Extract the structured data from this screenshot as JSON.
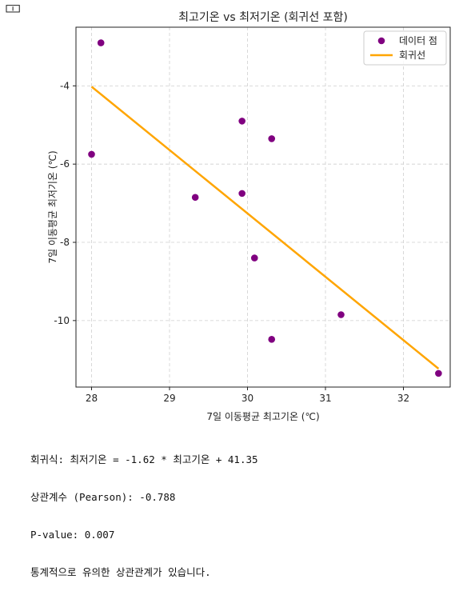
{
  "corner_icon": "🀱",
  "chart_data": {
    "type": "scatter",
    "title": "최고기온 vs 최저기온 (회귀선 포함)",
    "xlabel": "7일 이동평균 최고기온 (℃)",
    "ylabel": "7일 이동평균 최저기온 (℃)",
    "xlim": [
      27.8,
      32.6
    ],
    "ylim": [
      -11.7,
      -2.5
    ],
    "xticks": [
      28,
      29,
      30,
      31,
      32
    ],
    "yticks": [
      -4,
      -6,
      -8,
      -10
    ],
    "grid": true,
    "legend_position": "top-right",
    "series": [
      {
        "name": "데이터 점",
        "kind": "scatter",
        "color": "#800080",
        "points": [
          {
            "x": 28.12,
            "y": -2.9
          },
          {
            "x": 28.0,
            "y": -5.75
          },
          {
            "x": 29.33,
            "y": -6.85
          },
          {
            "x": 29.93,
            "y": -4.9
          },
          {
            "x": 29.93,
            "y": -6.75
          },
          {
            "x": 30.31,
            "y": -5.35
          },
          {
            "x": 30.09,
            "y": -8.4
          },
          {
            "x": 30.31,
            "y": -10.48
          },
          {
            "x": 31.2,
            "y": -9.85
          },
          {
            "x": 32.45,
            "y": -11.35
          }
        ]
      },
      {
        "name": "회귀선",
        "kind": "line",
        "color": "#FFA500",
        "points": [
          {
            "x": 28.0,
            "y": -4.02
          },
          {
            "x": 32.45,
            "y": -11.23
          }
        ]
      }
    ]
  },
  "stats": {
    "line1": "회귀식: 최저기온 = -1.62 * 최고기온 + 41.35",
    "line2": "상관계수 (Pearson): -0.788",
    "line3": "P-value: 0.007",
    "line4": "통계적으로 유의한 상관관계가 있습니다."
  }
}
